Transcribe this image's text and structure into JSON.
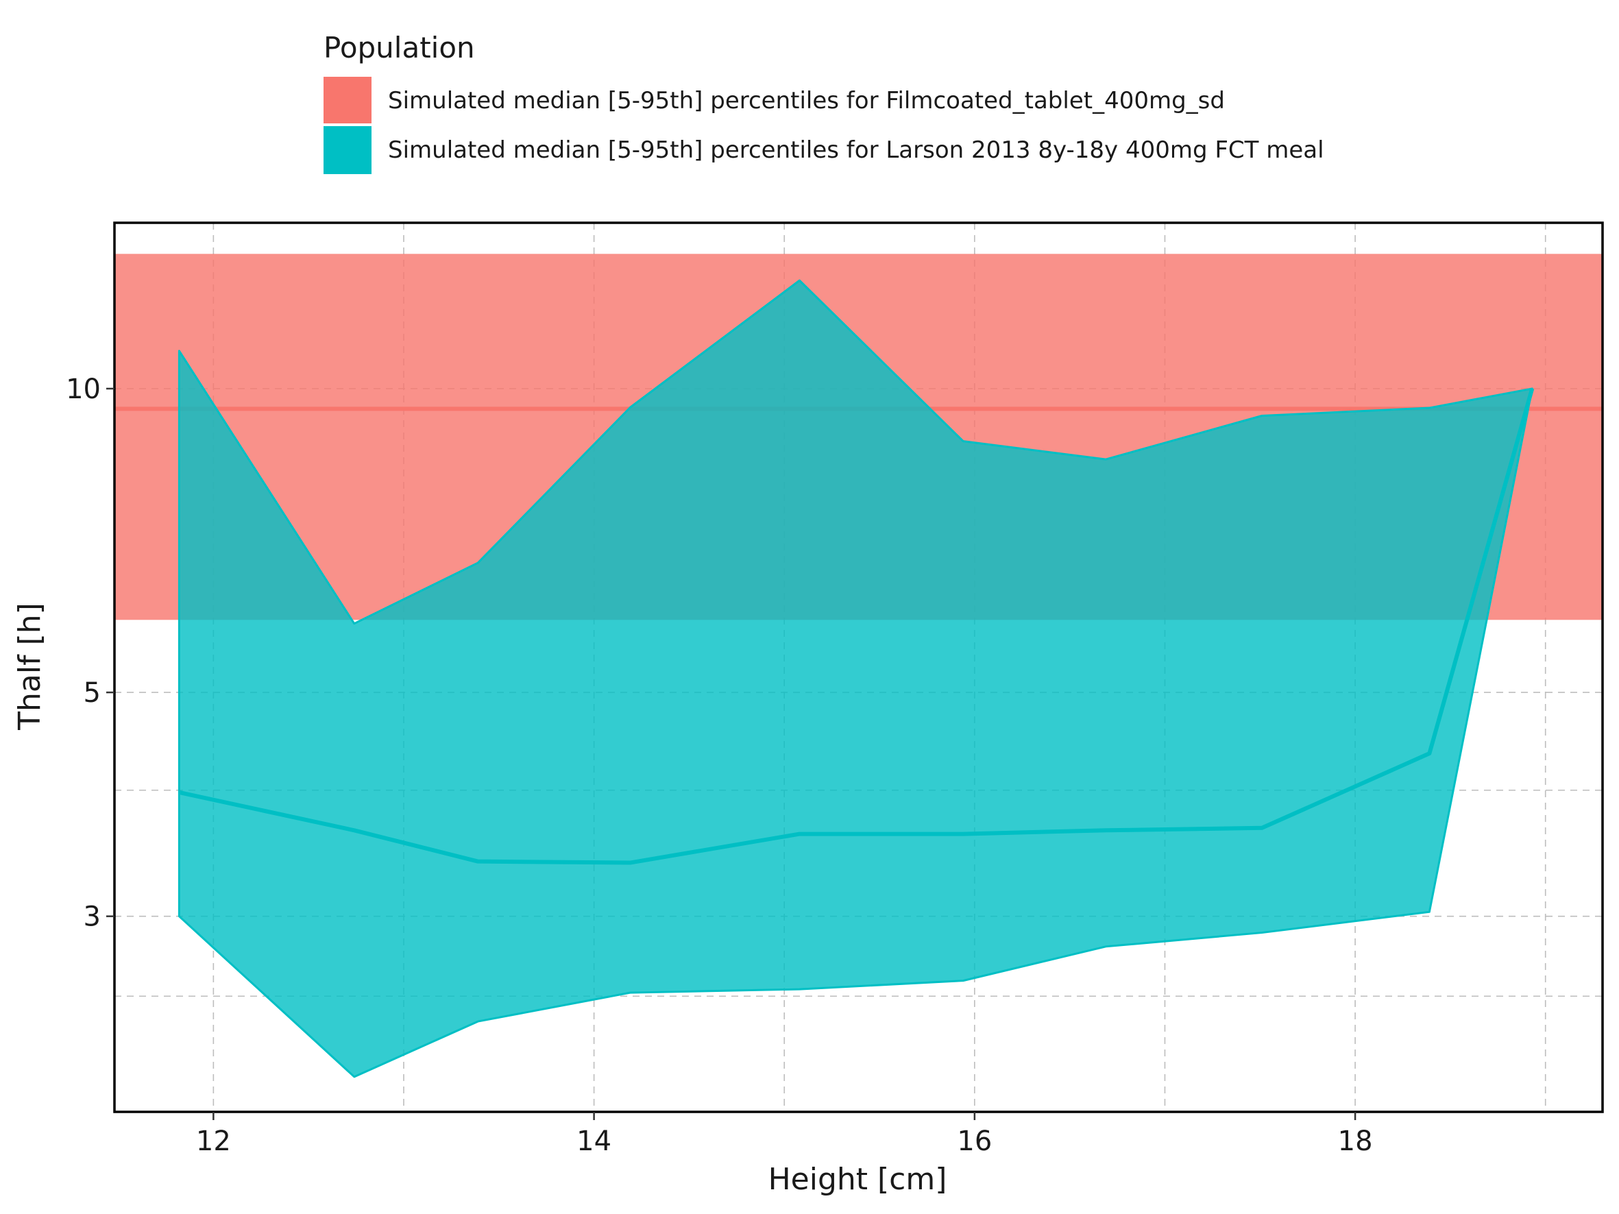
{
  "chart_data": {
    "type": "area",
    "title": "",
    "xlabel": "Height [cm]",
    "ylabel": "Thalf [h]",
    "xlim": [
      11.48,
      19.3
    ],
    "ylim": [
      1.92,
      14.6
    ],
    "y_scale": "log",
    "grid": true,
    "legend": {
      "title": "Population",
      "placement": "top",
      "entries": [
        {
          "label": "Simulated median [5-95th] percentiles for Filmcoated_tablet_400mg_sd",
          "color": "#F8766D"
        },
        {
          "label": "Simulated median [5-95th] percentiles for Larson 2013 8y-18y 400mg FCT meal",
          "color": "#00BFC4"
        }
      ]
    },
    "x_ticks": [
      12,
      14,
      16,
      18
    ],
    "x_tick_labels": [
      "12",
      "14",
      "16",
      "18"
    ],
    "x_minor_ticks": [
      13,
      15,
      17,
      19
    ],
    "y_ticks": [
      3,
      5,
      10
    ],
    "y_tick_labels": [
      "3",
      "5",
      "10"
    ],
    "y_minor_ticks": [
      2.5,
      4
    ],
    "series": [
      {
        "name": "Simulated median [5-95th] percentiles for Filmcoated_tablet_400mg_sd",
        "color": "#F8766D",
        "band": {
          "x_range": [
            11.48,
            19.3
          ],
          "median": 9.55,
          "low": 5.9,
          "high": 13.6
        }
      },
      {
        "name": "Simulated median [5-95th] percentiles for Larson 2013 8y-18y 400mg FCT meal",
        "color": "#00BFC4",
        "x": [
          11.82,
          12.74,
          13.39,
          14.19,
          15.08,
          15.94,
          16.69,
          17.51,
          18.39,
          18.93
        ],
        "median": [
          3.98,
          3.65,
          3.4,
          3.39,
          3.62,
          3.62,
          3.65,
          3.67,
          4.35,
          10.0
        ],
        "low": [
          3.0,
          2.08,
          2.36,
          2.52,
          2.54,
          2.59,
          2.8,
          2.89,
          3.03,
          10.0
        ],
        "high": [
          10.9,
          5.85,
          6.72,
          9.58,
          12.8,
          8.87,
          8.51,
          9.4,
          9.57,
          10.0
        ]
      }
    ]
  }
}
